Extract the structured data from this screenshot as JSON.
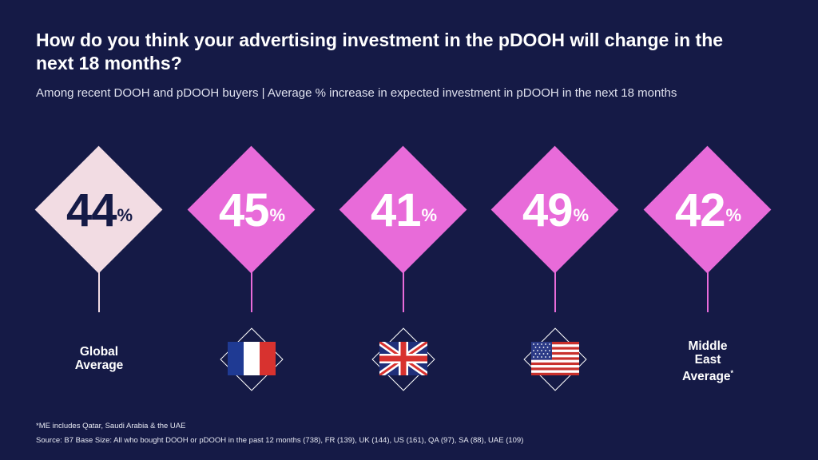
{
  "title": "How do you think your advertising investment in the pDOOH will change in the next 18 months?",
  "subtitle": "Among recent DOOH and pDOOH buyers  |  Average % increase in expected investment in pDOOH in the next 18 months",
  "footnote": "*ME includes Qatar, Saudi Arabia & the UAE",
  "source": "Source: B7 Base Size: All who bought DOOH or pDOOH in the past 12 months (738), FR (139), UK (144), US (161), QA (97), SA (88), UAE (109)",
  "colors": {
    "background": "#151a46",
    "global_diamond": "#f2dce3",
    "country_diamond": "#e86bd9",
    "global_text": "#151a46",
    "country_text": "#ffffff"
  },
  "chart_data": {
    "type": "table",
    "unit": "%",
    "categories": [
      "Global Average",
      "France",
      "UK",
      "US",
      "Middle East Average*"
    ],
    "values": [
      44,
      45,
      41,
      49,
      42
    ],
    "items": [
      {
        "label": "Global Average",
        "value": 44,
        "value_text": "44",
        "suffix": "%",
        "icon": null
      },
      {
        "label": "",
        "value": 45,
        "value_text": "45",
        "suffix": "%",
        "icon": "france-flag-icon"
      },
      {
        "label": "",
        "value": 41,
        "value_text": "41",
        "suffix": "%",
        "icon": "uk-flag-icon"
      },
      {
        "label": "",
        "value": 49,
        "value_text": "49",
        "suffix": "%",
        "icon": "us-flag-icon"
      },
      {
        "label": "Middle East Average",
        "label_mark": "*",
        "value": 42,
        "value_text": "42",
        "suffix": "%",
        "icon": null
      }
    ]
  }
}
